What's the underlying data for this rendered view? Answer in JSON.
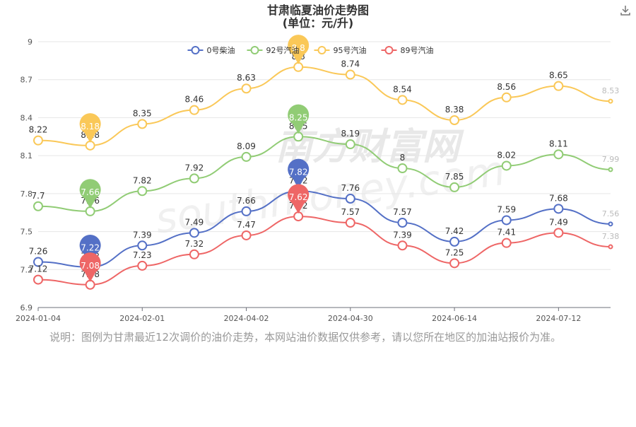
{
  "chart_data": {
    "type": "line",
    "title": "甘肃临夏油价走势图",
    "subtitle": "(单位：元/升)",
    "x_ticks": [
      "2024-01-04",
      "2024-02-01",
      "2024-04-02",
      "2024-04-30",
      "2024-06-14",
      "2024-07-12"
    ],
    "ylim": [
      6.9,
      9
    ],
    "y_ticks": [
      "6.9",
      "7.2",
      "7.5",
      "7.8",
      "8.1",
      "8.4",
      "8.7",
      "9"
    ],
    "grid": "horizontal",
    "legend_position": "top-center",
    "series": [
      {
        "name": "0号柴油",
        "color": "#5470c6",
        "values": [
          7.26,
          7.22,
          7.39,
          7.49,
          7.66,
          7.82,
          7.76,
          7.57,
          7.42,
          7.59,
          7.68,
          7.56
        ]
      },
      {
        "name": "92号汽油",
        "color": "#91cc75",
        "values": [
          7.7,
          7.66,
          7.82,
          7.92,
          8.09,
          8.25,
          8.19,
          8.0,
          7.85,
          8.02,
          8.11,
          7.99
        ]
      },
      {
        "name": "95号汽油",
        "color": "#fac858",
        "values": [
          8.22,
          8.18,
          8.35,
          8.46,
          8.63,
          8.8,
          8.74,
          8.54,
          8.38,
          8.56,
          8.65,
          8.53
        ]
      },
      {
        "name": "89号汽油",
        "color": "#ee6666",
        "values": [
          7.12,
          7.08,
          7.23,
          7.32,
          7.47,
          7.62,
          7.57,
          7.39,
          7.25,
          7.41,
          7.49,
          7.38
        ]
      }
    ],
    "data_labels": [
      [
        "7.26",
        "7.22",
        "7.39",
        "7.49",
        "7.66",
        "7.82",
        "7.76",
        "7.57",
        "7.42",
        "7.59",
        "7.68",
        "7.56"
      ],
      [
        "7.7",
        "7.66",
        "7.82",
        "7.92",
        "8.09",
        "8.25",
        "8.19",
        "8",
        "7.85",
        "8.02",
        "8.11",
        "7.99"
      ],
      [
        "8.22",
        "8.18",
        "8.35",
        "8.46",
        "8.63",
        "8.8",
        "8.74",
        "8.54",
        "8.38",
        "8.56",
        "8.65",
        "8.53"
      ],
      [
        "7.12",
        "7.08",
        "7.23",
        "7.32",
        "7.47",
        "7.62",
        "7.57",
        "7.39",
        "7.25",
        "7.41",
        "7.49",
        "7.38"
      ]
    ],
    "markers": "min and max points highlighted with pins"
  },
  "watermark": "南方财富网 southmoney.com",
  "note": "说明：图例为甘肃最近12次调价的油价走势，本网站油价数据仅供参考，请以您所在地区的加油站报价为准。",
  "download_icon": "download-icon"
}
